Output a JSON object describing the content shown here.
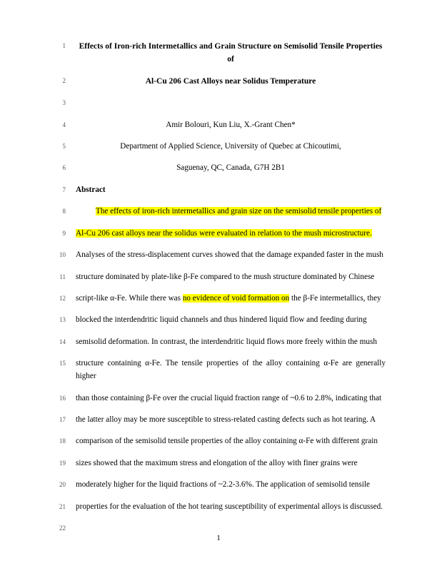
{
  "page_number": "1",
  "lines": [
    {
      "n": "1",
      "cls": "title",
      "parts": [
        {
          "t": "Effects of Iron-rich Intermetallics and Grain Structure on Semisolid Tensile Properties of"
        }
      ]
    },
    {
      "n": "2",
      "cls": "title",
      "parts": [
        {
          "t": "Al-Cu 206 Cast Alloys near Solidus Temperature"
        }
      ]
    },
    {
      "n": "3",
      "cls": "",
      "parts": [
        {
          "t": ""
        }
      ]
    },
    {
      "n": "4",
      "cls": "author",
      "parts": [
        {
          "t": "Amir Bolouri, Kun Liu, X.-Grant Chen*"
        }
      ]
    },
    {
      "n": "5",
      "cls": "affil",
      "parts": [
        {
          "t": "Department of Applied Science, University of Quebec at Chicoutimi,"
        }
      ]
    },
    {
      "n": "6",
      "cls": "affil",
      "parts": [
        {
          "t": "Saguenay, QC, Canada, G7H 2B1"
        }
      ]
    },
    {
      "n": "7",
      "cls": "sec",
      "parts": [
        {
          "t": "Abstract"
        }
      ]
    },
    {
      "n": "8",
      "cls": "indent",
      "parts": [
        {
          "t": "The effects of iron-rich intermetallics and grain size on the semisolid tensile properties of",
          "hl": true
        }
      ]
    },
    {
      "n": "9",
      "cls": "",
      "parts": [
        {
          "t": "Al-Cu 206 cast alloys near the solidus were evaluated in relation to the mush microstructure.",
          "hl": true
        }
      ]
    },
    {
      "n": "10",
      "cls": "",
      "parts": [
        {
          "t": "Analyses of the stress-displacement curves showed that the damage expanded faster in the mush"
        }
      ]
    },
    {
      "n": "11",
      "cls": "",
      "parts": [
        {
          "t": "structure dominated by plate-like β-Fe compared to the mush structure dominated by Chinese"
        }
      ]
    },
    {
      "n": "12",
      "cls": "",
      "parts": [
        {
          "t": "script-like α-Fe. While there was "
        },
        {
          "t": "no evidence of void formation on",
          "hl": true
        },
        {
          "t": " the β-Fe intermetallics, they"
        }
      ]
    },
    {
      "n": "13",
      "cls": "",
      "parts": [
        {
          "t": "blocked the interdendritic liquid channels and thus hindered liquid flow and feeding during"
        }
      ]
    },
    {
      "n": "14",
      "cls": "",
      "parts": [
        {
          "t": "semisolid deformation. In contrast, the interdendritic liquid flows more freely within the mush"
        }
      ]
    },
    {
      "n": "15",
      "cls": "",
      "parts": [
        {
          "t": "structure containing α-Fe. The tensile properties of the alloy containing α-Fe are generally higher"
        }
      ]
    },
    {
      "n": "16",
      "cls": "",
      "parts": [
        {
          "t": "than those containing β-Fe over the crucial liquid fraction range of ~0.6 to 2.8%, indicating that"
        }
      ]
    },
    {
      "n": "17",
      "cls": "",
      "parts": [
        {
          "t": "the latter alloy may be more susceptible to stress-related casting defects such as hot tearing. A"
        }
      ]
    },
    {
      "n": "18",
      "cls": "",
      "parts": [
        {
          "t": "comparison of the semisolid tensile properties of the alloy containing α-Fe with different grain"
        }
      ]
    },
    {
      "n": "19",
      "cls": "",
      "parts": [
        {
          "t": "sizes showed that the maximum stress and elongation of the alloy with finer grains were"
        }
      ]
    },
    {
      "n": "20",
      "cls": "",
      "parts": [
        {
          "t": "moderately higher for the liquid fractions of ~2.2-3.6%. The application of semisolid tensile"
        }
      ]
    },
    {
      "n": "21",
      "cls": "",
      "parts": [
        {
          "t": "properties for the evaluation of the hot tearing susceptibility of experimental alloys is discussed."
        }
      ]
    },
    {
      "n": "22",
      "cls": "",
      "parts": [
        {
          "t": ""
        }
      ]
    }
  ]
}
